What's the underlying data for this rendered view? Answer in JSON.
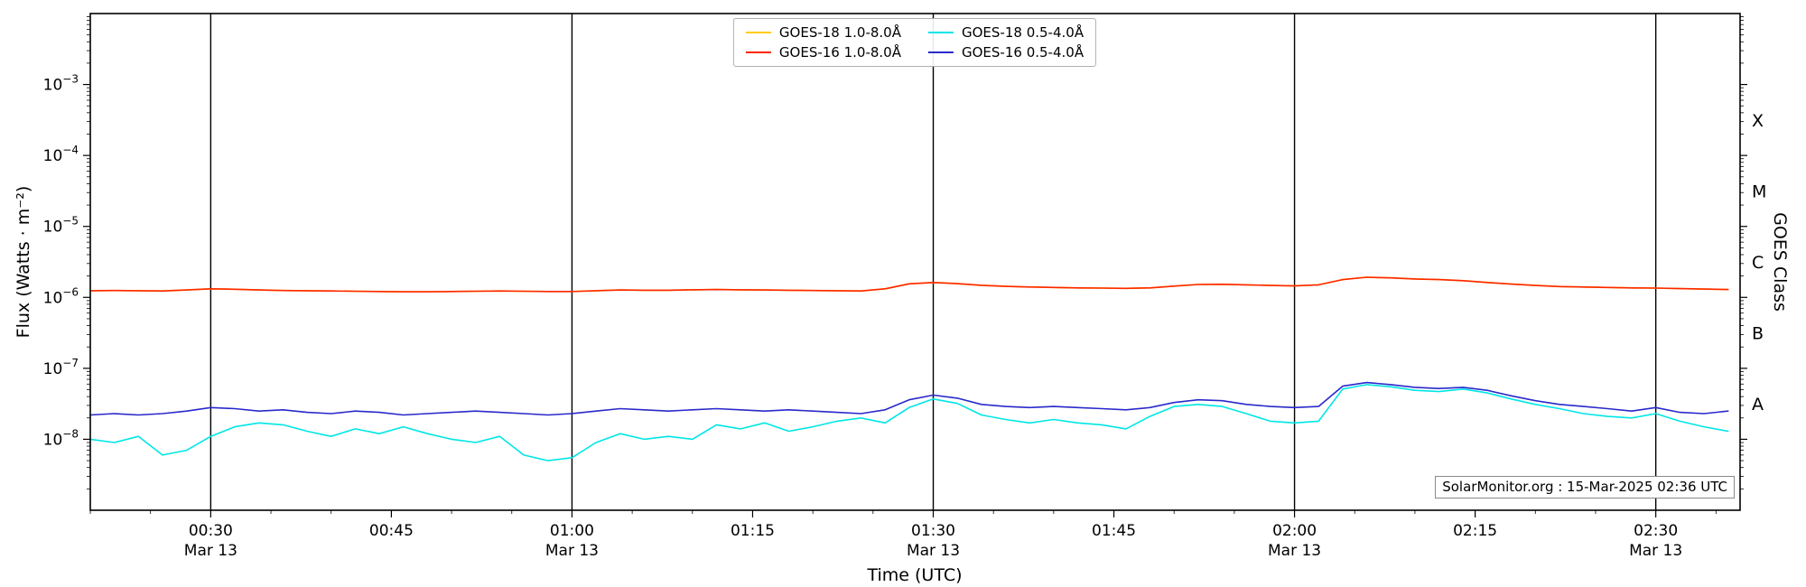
{
  "labels": {
    "ylabel": "Flux (Watts · m⁻²)",
    "xlabel": "Time (UTC)",
    "right_label": "GOES Class",
    "annotation": "SolarMonitor.org : 15-Mar-2025 02:36 UTC"
  },
  "colors": {
    "goes18_long": "#ffcc00",
    "goes16_long": "#ff2600",
    "goes18_short": "#00e6e6",
    "goes16_short": "#2929cc",
    "axis": "#000000",
    "vline": "#000000"
  },
  "axes": {
    "x_range_minutes": [
      20,
      157
    ],
    "y_range_exp": [
      -9,
      -2
    ],
    "y_tick_base": "10",
    "y_ticks": [
      {
        "exp": -3,
        "sup": "−3"
      },
      {
        "exp": -4,
        "sup": "−4"
      },
      {
        "exp": -5,
        "sup": "−5"
      },
      {
        "exp": -6,
        "sup": "−6"
      },
      {
        "exp": -7,
        "sup": "−7"
      },
      {
        "exp": -8,
        "sup": "−8"
      }
    ],
    "x_minor_step_minutes": 5,
    "x_ticks": [
      {
        "m": 30,
        "label": "00:30",
        "sub": "Mar 13",
        "vline": true
      },
      {
        "m": 45,
        "label": "00:45"
      },
      {
        "m": 60,
        "label": "01:00",
        "sub": "Mar 13",
        "vline": true
      },
      {
        "m": 75,
        "label": "01:15"
      },
      {
        "m": 90,
        "label": "01:30",
        "sub": "Mar 13",
        "vline": true
      },
      {
        "m": 105,
        "label": "01:45"
      },
      {
        "m": 120,
        "label": "02:00",
        "sub": "Mar 13",
        "vline": true
      },
      {
        "m": 135,
        "label": "02:15"
      },
      {
        "m": 150,
        "label": "02:30",
        "sub": "Mar 13",
        "vline": true
      }
    ],
    "goes_classes": [
      {
        "label": "X",
        "log10": -3.5
      },
      {
        "label": "M",
        "log10": -4.5
      },
      {
        "label": "C",
        "log10": -5.5
      },
      {
        "label": "B",
        "log10": -6.5
      },
      {
        "label": "A",
        "log10": -7.5
      }
    ]
  },
  "chart_data": {
    "type": "line",
    "xlabel": "Time (UTC)",
    "ylabel": "Flux (Watts · m⁻²)",
    "yscale": "log",
    "ylim": [
      1e-09,
      0.01
    ],
    "x_unit": "minutes after 00:00 UTC, 13-Mar-2025",
    "x_minutes": [
      20,
      22,
      24,
      26,
      28,
      30,
      32,
      34,
      36,
      38,
      40,
      42,
      44,
      46,
      48,
      50,
      52,
      54,
      56,
      58,
      60,
      62,
      64,
      66,
      68,
      70,
      72,
      74,
      76,
      78,
      80,
      82,
      84,
      86,
      88,
      90,
      92,
      94,
      96,
      98,
      100,
      102,
      104,
      106,
      108,
      110,
      112,
      114,
      116,
      118,
      120,
      122,
      124,
      126,
      128,
      130,
      132,
      134,
      136,
      138,
      140,
      142,
      144,
      146,
      148,
      150,
      152,
      154,
      156
    ],
    "series": [
      {
        "name": "GOES-18 1.0-8.0Å",
        "color_key": "goes18_long",
        "scale": 1e-06,
        "values": [
          1.24,
          1.25,
          1.24,
          1.23,
          1.27,
          1.32,
          1.3,
          1.27,
          1.25,
          1.24,
          1.23,
          1.22,
          1.21,
          1.2,
          1.2,
          1.21,
          1.22,
          1.23,
          1.22,
          1.21,
          1.21,
          1.24,
          1.27,
          1.26,
          1.26,
          1.28,
          1.29,
          1.28,
          1.27,
          1.26,
          1.25,
          1.24,
          1.23,
          1.32,
          1.55,
          1.62,
          1.56,
          1.48,
          1.43,
          1.4,
          1.38,
          1.36,
          1.35,
          1.34,
          1.36,
          1.44,
          1.52,
          1.53,
          1.5,
          1.47,
          1.45,
          1.5,
          1.78,
          1.92,
          1.88,
          1.82,
          1.78,
          1.72,
          1.62,
          1.54,
          1.47,
          1.42,
          1.4,
          1.38,
          1.36,
          1.35,
          1.33,
          1.31,
          1.29
        ]
      },
      {
        "name": "GOES-16 1.0-8.0Å",
        "color_key": "goes16_long",
        "scale": 1e-06,
        "values": [
          1.24,
          1.25,
          1.24,
          1.23,
          1.27,
          1.32,
          1.3,
          1.27,
          1.25,
          1.24,
          1.23,
          1.22,
          1.21,
          1.2,
          1.2,
          1.21,
          1.22,
          1.23,
          1.22,
          1.21,
          1.21,
          1.24,
          1.27,
          1.26,
          1.26,
          1.28,
          1.29,
          1.28,
          1.27,
          1.26,
          1.25,
          1.24,
          1.23,
          1.32,
          1.55,
          1.62,
          1.56,
          1.48,
          1.43,
          1.4,
          1.38,
          1.36,
          1.35,
          1.34,
          1.36,
          1.44,
          1.52,
          1.53,
          1.5,
          1.47,
          1.45,
          1.5,
          1.78,
          1.92,
          1.88,
          1.82,
          1.78,
          1.72,
          1.62,
          1.54,
          1.47,
          1.42,
          1.4,
          1.38,
          1.36,
          1.35,
          1.33,
          1.31,
          1.29
        ]
      },
      {
        "name": "GOES-18 0.5-4.0Å",
        "color_key": "goes18_short",
        "scale": 1e-08,
        "values": [
          1.0,
          0.9,
          1.1,
          0.6,
          0.7,
          1.1,
          1.5,
          1.7,
          1.6,
          1.3,
          1.1,
          1.4,
          1.2,
          1.5,
          1.2,
          1.0,
          0.9,
          1.1,
          0.6,
          0.5,
          0.55,
          0.9,
          1.2,
          1.0,
          1.1,
          1.0,
          1.6,
          1.4,
          1.7,
          1.3,
          1.5,
          1.8,
          2.0,
          1.7,
          2.8,
          3.7,
          3.2,
          2.2,
          1.9,
          1.7,
          1.9,
          1.7,
          1.6,
          1.4,
          2.1,
          2.9,
          3.1,
          2.9,
          2.3,
          1.8,
          1.7,
          1.8,
          5.1,
          5.9,
          5.5,
          4.9,
          4.7,
          5.1,
          4.5,
          3.7,
          3.1,
          2.7,
          2.3,
          2.1,
          2.0,
          2.3,
          1.8,
          1.5,
          1.3
        ]
      },
      {
        "name": "GOES-16 0.5-4.0Å",
        "color_key": "goes16_short",
        "scale": 1e-08,
        "values": [
          2.2,
          2.3,
          2.2,
          2.3,
          2.5,
          2.8,
          2.7,
          2.5,
          2.6,
          2.4,
          2.3,
          2.5,
          2.4,
          2.2,
          2.3,
          2.4,
          2.5,
          2.4,
          2.3,
          2.2,
          2.3,
          2.5,
          2.7,
          2.6,
          2.5,
          2.6,
          2.7,
          2.6,
          2.5,
          2.6,
          2.5,
          2.4,
          2.3,
          2.6,
          3.6,
          4.2,
          3.8,
          3.1,
          2.9,
          2.8,
          2.9,
          2.8,
          2.7,
          2.6,
          2.8,
          3.3,
          3.6,
          3.5,
          3.1,
          2.9,
          2.8,
          2.9,
          5.6,
          6.3,
          5.9,
          5.4,
          5.2,
          5.4,
          4.9,
          4.1,
          3.5,
          3.1,
          2.9,
          2.7,
          2.5,
          2.8,
          2.4,
          2.3,
          2.5
        ]
      }
    ],
    "legend_position": "upper center"
  }
}
